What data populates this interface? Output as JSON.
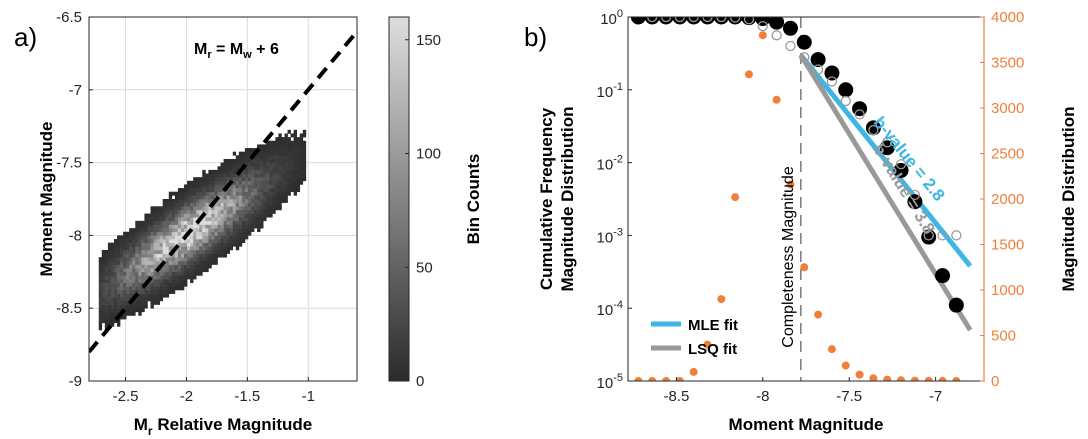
{
  "chart_data": [
    {
      "panel_label": "a)",
      "type": "heatmap",
      "xlabel_main": "M",
      "xlabel_sub": "r",
      "xlabel_rest": " Relative Magnitude",
      "ylabel": "Moment Magnitude",
      "xlim": [
        -2.8,
        -0.6
      ],
      "ylim": [
        -9,
        -6.5
      ],
      "xticks": [
        "-2.5",
        "-2",
        "-1.5",
        "-1"
      ],
      "xtick_values": [
        -2.5,
        -2,
        -1.5,
        -1
      ],
      "yticks": [
        "-6.5",
        "-7",
        "-7.5",
        "-8",
        "-8.5",
        "-9"
      ],
      "ytick_values": [
        -6.5,
        -7,
        -7.5,
        -8,
        -8.5,
        -9
      ],
      "grid": true,
      "annotation": {
        "main": "M",
        "sub1": "r",
        "mid": " = M",
        "sub2": "w",
        "rest": " + 6"
      },
      "fit_line": {
        "style": "dashed",
        "slope": 1,
        "intercept": 6,
        "color": "#000000"
      },
      "density": {
        "center": [
          -2.0,
          -8.0
        ],
        "peak_count": 155,
        "major_axis_direction": [
          1,
          0.6
        ],
        "spread_major": 0.42,
        "spread_minor": 0.1
      },
      "colorbar": {
        "label": "Bin Counts",
        "range": [
          0,
          160
        ],
        "ticks": [
          "0",
          "50",
          "100",
          "150"
        ],
        "tick_values": [
          0,
          50,
          100,
          150
        ],
        "colormap": "gray"
      }
    },
    {
      "panel_label": "b)",
      "type": "scatter",
      "xlabel": "Moment Magnitude",
      "ylabel_line1": "Cumulative Frequency",
      "ylabel_line2": "Magnitude Distribution",
      "ylabel_right": "Magnitude Distribution",
      "xlim": [
        -8.78,
        -6.72
      ],
      "ylim": [
        1e-05,
        1
      ],
      "yscale": "log",
      "xticks": [
        "-8.5",
        "-8",
        "-7.5",
        "-7"
      ],
      "xtick_values": [
        -8.5,
        -8,
        -7.5,
        -7
      ],
      "yticks_base": "10",
      "yticks_exp": [
        "0",
        "-1",
        "-2",
        "-3",
        "-4",
        "-5"
      ],
      "ytick_values": [
        1,
        0.1,
        0.01,
        0.001,
        0.0001,
        1e-05
      ],
      "ylim_right": [
        0,
        4000
      ],
      "yticks_right": [
        "0",
        "500",
        "1000",
        "1500",
        "2000",
        "2500",
        "3000",
        "3500",
        "4000"
      ],
      "ytick_values_right": [
        0,
        500,
        1000,
        1500,
        2000,
        2500,
        3000,
        3500,
        4000
      ],
      "completeness": {
        "x": -7.78,
        "label": "Completeness Magnitude"
      },
      "colors": {
        "mle": "#3bb6e6",
        "lsq": "#999999",
        "orange": "#f07f3c",
        "black": "#000000"
      },
      "series": [
        {
          "kind": "filled_black",
          "x": [
            -8.72,
            -8.64,
            -8.56,
            -8.48,
            -8.4,
            -8.32,
            -8.24,
            -8.16,
            -8.08,
            -8.0,
            -7.92,
            -7.84,
            -7.76,
            -7.68,
            -7.6,
            -7.52,
            -7.44,
            -7.36,
            -7.28,
            -7.2,
            -7.12,
            -7.04,
            -6.96,
            -6.88
          ],
          "y": [
            1,
            1,
            1,
            1,
            1,
            1,
            1,
            1,
            0.98,
            0.95,
            0.85,
            0.7,
            0.45,
            0.26,
            0.17,
            0.1,
            0.055,
            0.03,
            0.016,
            0.0078,
            0.0029,
            0.00095,
            0.00028,
            0.00011
          ]
        },
        {
          "kind": "open_gray",
          "x": [
            -8.64,
            -8.56,
            -8.48,
            -8.4,
            -8.32,
            -8.24,
            -8.16,
            -8.08,
            -8.0,
            -7.92,
            -7.84,
            -7.76,
            -7.68,
            -7.6,
            -7.52,
            -7.44,
            -7.36,
            -7.28,
            -7.2,
            -7.12,
            -7.04,
            -6.96,
            -6.88
          ],
          "y": [
            1,
            1,
            1,
            1,
            1,
            1,
            0.98,
            0.93,
            0.75,
            0.56,
            0.4,
            0.28,
            0.19,
            0.13,
            0.07,
            0.046,
            0.028,
            0.019,
            0.0095,
            0.0036,
            0.001,
            0.001,
            0.001
          ]
        },
        {
          "kind": "orange_right",
          "x": [
            -8.72,
            -8.64,
            -8.56,
            -8.48,
            -8.4,
            -8.32,
            -8.24,
            -8.16,
            -8.08,
            -8.0,
            -7.92,
            -7.84,
            -7.76,
            -7.68,
            -7.6,
            -7.52,
            -7.44,
            -7.36,
            -7.28,
            -7.2,
            -7.12,
            -7.04,
            -6.96,
            -6.88
          ],
          "y": [
            0,
            0,
            0,
            0,
            100,
            400,
            900,
            2020,
            3370,
            3800,
            3090,
            2160,
            1250,
            730,
            350,
            170,
            70,
            30,
            15,
            8,
            4,
            2,
            1,
            0
          ]
        }
      ],
      "fits": [
        {
          "legend": "MLE fit",
          "kind": "mle",
          "x": [
            -7.78,
            -6.8
          ],
          "y": [
            0.3,
            0.00038
          ],
          "label": "b-value = 2.8"
        },
        {
          "legend": "LSQ fit",
          "kind": "lsq",
          "x": [
            -7.78,
            -6.8
          ],
          "y": [
            0.3,
            5e-05
          ],
          "label": "b-value = 3.8"
        }
      ]
    }
  ]
}
